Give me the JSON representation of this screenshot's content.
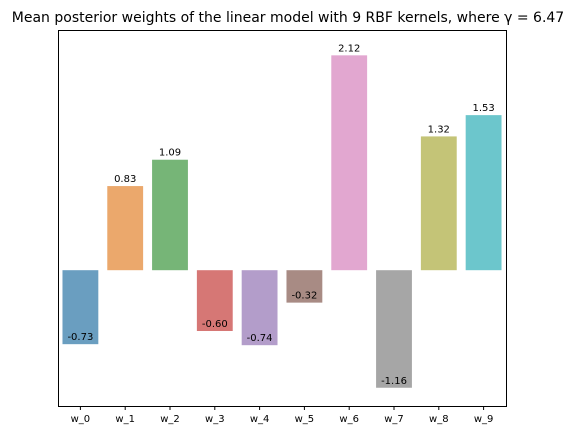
{
  "chart_data": {
    "type": "bar",
    "title": "Mean posterior weights of the linear model with 9 RBF kernels, where γ = 6.47",
    "xlabel": "",
    "ylabel": "",
    "categories": [
      "w_0",
      "w_1",
      "w_2",
      "w_3",
      "w_4",
      "w_5",
      "w_6",
      "w_7",
      "w_8",
      "w_9"
    ],
    "values": [
      -0.73,
      0.83,
      1.09,
      -0.6,
      -0.74,
      -0.32,
      2.12,
      -1.16,
      1.32,
      1.53
    ],
    "value_labels": [
      "-0.73",
      "0.83",
      "1.09",
      "-0.60",
      "-0.74",
      "-0.32",
      "2.12",
      "-1.16",
      "1.32",
      "1.53"
    ],
    "colors": [
      "#6a9ec0",
      "#eba86c",
      "#76b577",
      "#d67775",
      "#b39dca",
      "#a88b84",
      "#e2a7d0",
      "#a6a6a6",
      "#c4c477",
      "#6cc6cc"
    ],
    "ylim": [
      -1.34,
      2.37
    ],
    "grid": false,
    "legend": "none",
    "y_ticks_visible": false
  }
}
